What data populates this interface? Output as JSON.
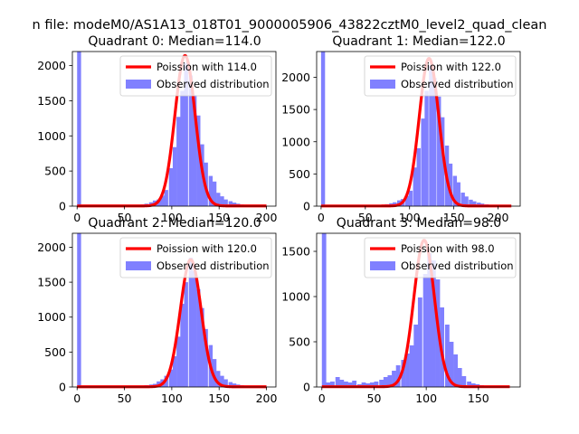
{
  "figure": {
    "suptitle": "n file: modeM0/AS1A13_018T01_9000005906_43822cztM0_level2_quad_clean"
  },
  "colors": {
    "hist": "#8080ff",
    "poisson": "#ff0000"
  },
  "chart_data": [
    {
      "type": "bar",
      "title": "Quadrant 0: Median=114.0",
      "xlim": [
        -5,
        210
      ],
      "ylim": [
        0,
        2200
      ],
      "xticks": [
        0,
        50,
        100,
        150,
        200
      ],
      "yticks": [
        0,
        500,
        1000,
        1500,
        2000
      ],
      "legend": {
        "placement": "top-right",
        "entries": [
          "Poission with 114.0",
          "Observed distribution"
        ]
      },
      "bin_width": 4.2,
      "histogram": [
        [
          0,
          2200
        ],
        [
          4,
          15
        ],
        [
          8,
          10
        ],
        [
          13,
          12
        ],
        [
          17,
          8
        ],
        [
          21,
          10
        ],
        [
          25,
          8
        ],
        [
          29,
          10
        ],
        [
          34,
          10
        ],
        [
          38,
          12
        ],
        [
          42,
          10
        ],
        [
          46,
          12
        ],
        [
          50,
          15
        ],
        [
          55,
          12
        ],
        [
          59,
          18
        ],
        [
          63,
          20
        ],
        [
          67,
          25
        ],
        [
          71,
          35
        ],
        [
          76,
          55
        ],
        [
          80,
          80
        ],
        [
          84,
          95
        ],
        [
          88,
          150
        ],
        [
          92,
          230
        ],
        [
          97,
          540
        ],
        [
          101,
          840
        ],
        [
          105,
          1270
        ],
        [
          109,
          1640
        ],
        [
          113,
          2040
        ],
        [
          118,
          1860
        ],
        [
          122,
          1580
        ],
        [
          126,
          1290
        ],
        [
          130,
          880
        ],
        [
          134,
          620
        ],
        [
          139,
          430
        ],
        [
          143,
          350
        ],
        [
          147,
          190
        ],
        [
          151,
          140
        ],
        [
          155,
          95
        ],
        [
          160,
          70
        ],
        [
          164,
          50
        ],
        [
          168,
          35
        ],
        [
          172,
          25
        ],
        [
          176,
          15
        ],
        [
          181,
          10
        ],
        [
          185,
          8
        ],
        [
          189,
          5
        ],
        [
          193,
          4
        ],
        [
          197,
          3
        ]
      ],
      "poisson": {
        "label": "Poission with 114.0",
        "mean": 114.0,
        "peak": 2140,
        "xrange": [
          0,
          200
        ]
      }
    },
    {
      "type": "bar",
      "title": "Quadrant 1: Median=122.0",
      "xlim": [
        -5,
        225
      ],
      "ylim": [
        0,
        2400
      ],
      "xticks": [
        0,
        50,
        100,
        150,
        200
      ],
      "yticks": [
        0,
        500,
        1000,
        1500,
        2000
      ],
      "legend": {
        "placement": "top-right",
        "entries": [
          "Poission with 122.0",
          "Observed distribution"
        ]
      },
      "bin_width": 4.5,
      "histogram": [
        [
          0,
          2400
        ],
        [
          5,
          15
        ],
        [
          9,
          10
        ],
        [
          14,
          12
        ],
        [
          18,
          10
        ],
        [
          23,
          10
        ],
        [
          27,
          8
        ],
        [
          32,
          10
        ],
        [
          36,
          10
        ],
        [
          41,
          12
        ],
        [
          45,
          10
        ],
        [
          50,
          12
        ],
        [
          54,
          15
        ],
        [
          59,
          15
        ],
        [
          63,
          18
        ],
        [
          68,
          22
        ],
        [
          72,
          30
        ],
        [
          77,
          45
        ],
        [
          81,
          60
        ],
        [
          86,
          90
        ],
        [
          90,
          110
        ],
        [
          95,
          160
        ],
        [
          99,
          240
        ],
        [
          104,
          600
        ],
        [
          108,
          900
        ],
        [
          113,
          1360
        ],
        [
          117,
          1790
        ],
        [
          122,
          2190
        ],
        [
          126,
          1990
        ],
        [
          131,
          1700
        ],
        [
          135,
          1380
        ],
        [
          140,
          940
        ],
        [
          144,
          660
        ],
        [
          149,
          470
        ],
        [
          153,
          370
        ],
        [
          158,
          210
        ],
        [
          162,
          150
        ],
        [
          167,
          100
        ],
        [
          171,
          75
        ],
        [
          176,
          55
        ],
        [
          180,
          40
        ],
        [
          185,
          28
        ],
        [
          189,
          18
        ],
        [
          194,
          12
        ],
        [
          198,
          8
        ],
        [
          203,
          6
        ],
        [
          207,
          4
        ],
        [
          212,
          3
        ]
      ],
      "poisson": {
        "label": "Poission with 122.0",
        "mean": 122.0,
        "peak": 2290,
        "xrange": [
          0,
          215
        ]
      }
    },
    {
      "type": "bar",
      "title": "Quadrant 2: Median=120.0",
      "xlim": [
        -5,
        210
      ],
      "ylim": [
        0,
        2200
      ],
      "xticks": [
        0,
        50,
        100,
        150,
        200
      ],
      "yticks": [
        0,
        500,
        1000,
        1500,
        2000
      ],
      "legend": {
        "placement": "top-right",
        "entries": [
          "Poission with 120.0",
          "Observed distribution"
        ]
      },
      "bin_width": 4.2,
      "histogram": [
        [
          0,
          2200
        ],
        [
          4,
          15
        ],
        [
          8,
          10
        ],
        [
          13,
          10
        ],
        [
          17,
          8
        ],
        [
          21,
          8
        ],
        [
          25,
          8
        ],
        [
          29,
          8
        ],
        [
          34,
          8
        ],
        [
          38,
          10
        ],
        [
          42,
          8
        ],
        [
          46,
          10
        ],
        [
          50,
          10
        ],
        [
          55,
          10
        ],
        [
          59,
          12
        ],
        [
          63,
          15
        ],
        [
          67,
          18
        ],
        [
          71,
          25
        ],
        [
          76,
          35
        ],
        [
          80,
          45
        ],
        [
          84,
          80
        ],
        [
          88,
          110
        ],
        [
          92,
          160
        ],
        [
          97,
          250
        ],
        [
          101,
          440
        ],
        [
          105,
          720
        ],
        [
          109,
          1190
        ],
        [
          113,
          1500
        ],
        [
          118,
          1850
        ],
        [
          122,
          1660
        ],
        [
          126,
          1400
        ],
        [
          130,
          1130
        ],
        [
          134,
          830
        ],
        [
          139,
          600
        ],
        [
          143,
          400
        ],
        [
          147,
          230
        ],
        [
          151,
          160
        ],
        [
          155,
          110
        ],
        [
          160,
          70
        ],
        [
          164,
          50
        ],
        [
          168,
          35
        ],
        [
          172,
          25
        ],
        [
          176,
          15
        ],
        [
          181,
          10
        ],
        [
          185,
          8
        ],
        [
          189,
          5
        ],
        [
          193,
          4
        ],
        [
          197,
          3
        ]
      ],
      "poisson": {
        "label": "Poission with 120.0",
        "mean": 120.0,
        "peak": 1820,
        "xrange": [
          0,
          200
        ]
      }
    },
    {
      "type": "bar",
      "title": "Quadrant 3: Median=98.0",
      "xlim": [
        -5,
        190
      ],
      "ylim": [
        0,
        1700
      ],
      "xticks": [
        0,
        50,
        100,
        150
      ],
      "yticks": [
        0,
        500,
        1000,
        1500
      ],
      "legend": {
        "placement": "top-right",
        "entries": [
          "Poission with 98.0",
          "Observed distribution"
        ]
      },
      "bin_width": 4.2,
      "histogram": [
        [
          0,
          1700
        ],
        [
          4,
          50
        ],
        [
          8,
          60
        ],
        [
          13,
          110
        ],
        [
          17,
          80
        ],
        [
          21,
          60
        ],
        [
          25,
          50
        ],
        [
          29,
          70
        ],
        [
          34,
          30
        ],
        [
          38,
          50
        ],
        [
          42,
          40
        ],
        [
          46,
          50
        ],
        [
          50,
          60
        ],
        [
          55,
          80
        ],
        [
          59,
          110
        ],
        [
          63,
          130
        ],
        [
          67,
          180
        ],
        [
          71,
          240
        ],
        [
          76,
          300
        ],
        [
          80,
          370
        ],
        [
          84,
          460
        ],
        [
          88,
          690
        ],
        [
          92,
          990
        ],
        [
          97,
          1250
        ],
        [
          101,
          1480
        ],
        [
          105,
          1400
        ],
        [
          109,
          1190
        ],
        [
          113,
          880
        ],
        [
          118,
          690
        ],
        [
          122,
          500
        ],
        [
          126,
          360
        ],
        [
          130,
          210
        ],
        [
          134,
          120
        ],
        [
          139,
          60
        ],
        [
          143,
          40
        ],
        [
          147,
          30
        ],
        [
          151,
          20
        ],
        [
          155,
          12
        ],
        [
          160,
          8
        ],
        [
          164,
          5
        ],
        [
          168,
          4
        ],
        [
          172,
          3
        ],
        [
          176,
          2
        ]
      ],
      "poisson": {
        "label": "Poission with 98.0",
        "mean": 98.0,
        "peak": 1620,
        "xrange": [
          0,
          180
        ]
      }
    }
  ]
}
